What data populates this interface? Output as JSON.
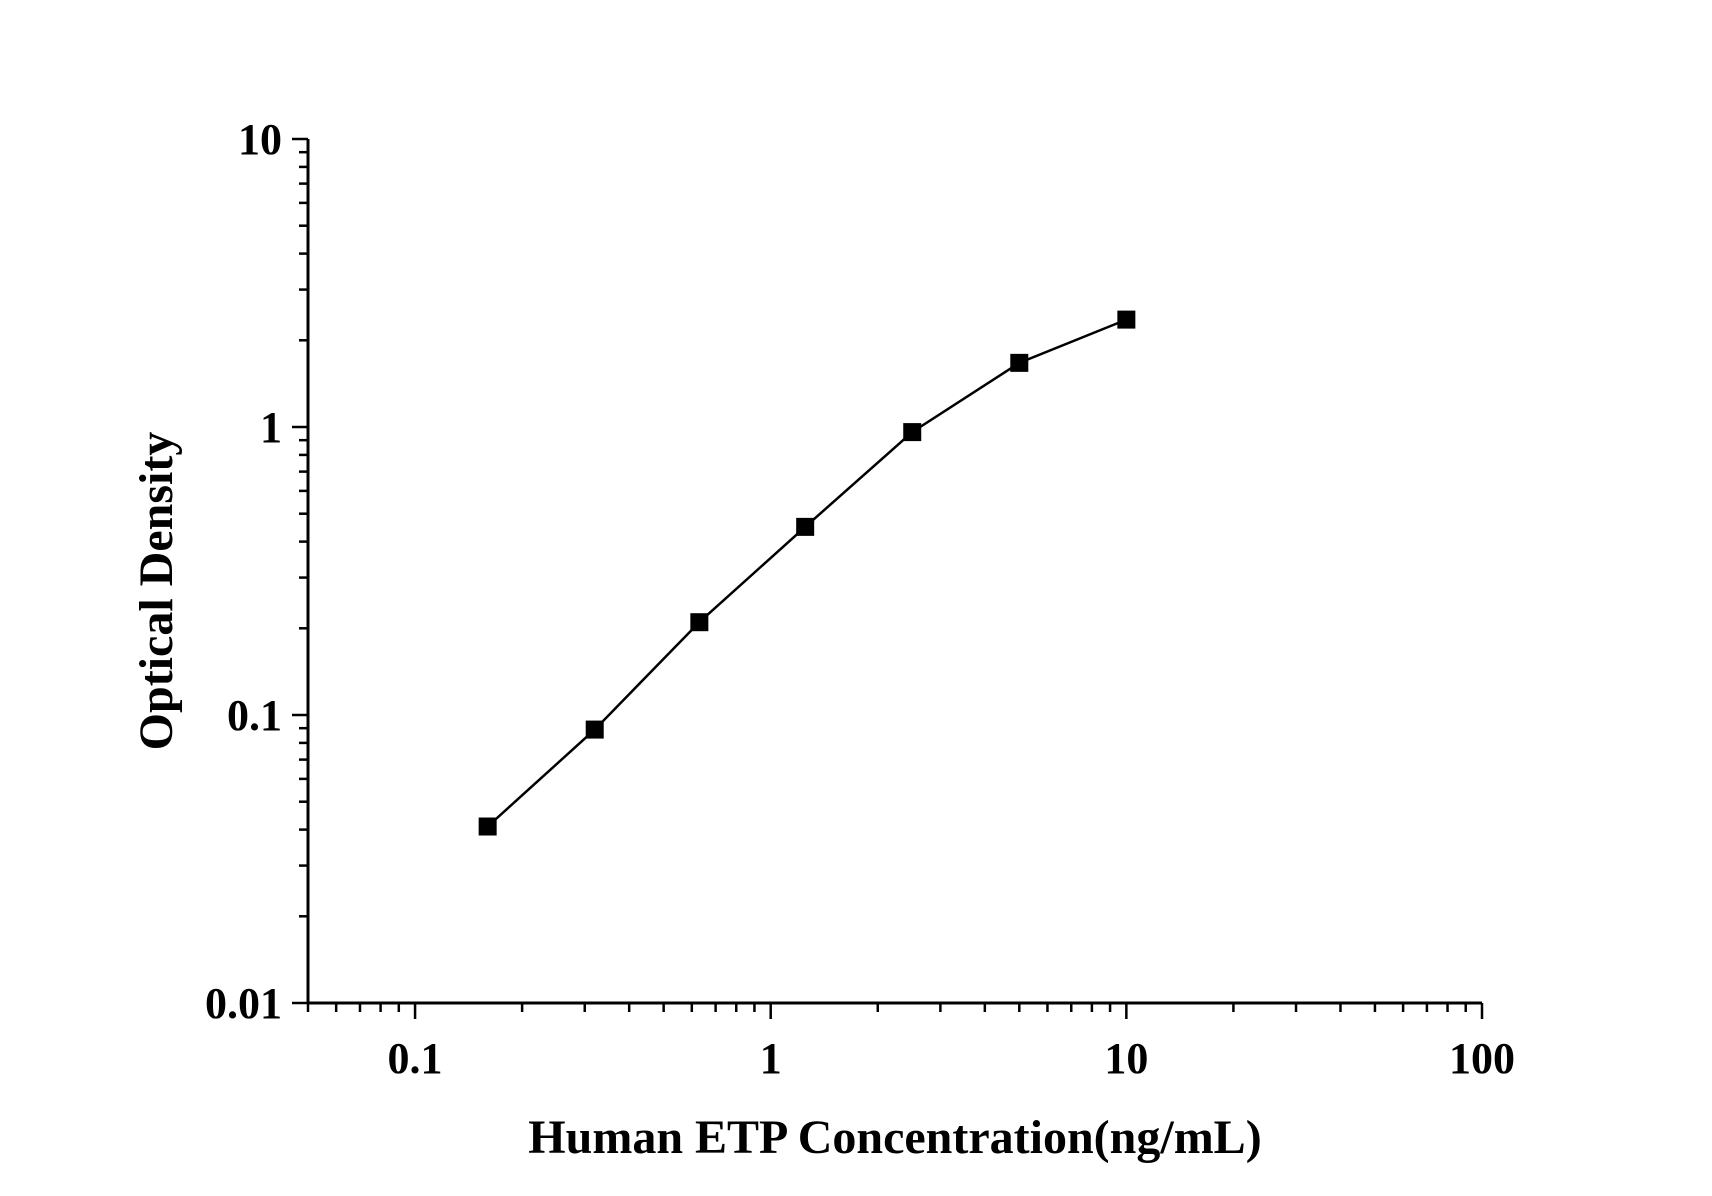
{
  "chart_data": {
    "type": "line",
    "title": "",
    "xlabel": "Human ETP Concentration(ng/mL)",
    "ylabel": "Optical Density",
    "x_scale": "log",
    "y_scale": "log",
    "xlim": [
      0.05,
      100
    ],
    "ylim": [
      0.01,
      10
    ],
    "x_ticks": [
      0.1,
      1,
      10,
      100
    ],
    "x_tick_labels": [
      "0.1",
      "1",
      "10",
      "100"
    ],
    "y_ticks": [
      0.01,
      0.1,
      1,
      10
    ],
    "y_tick_labels": [
      "0.01",
      "0.1",
      "1",
      "10"
    ],
    "grid": false,
    "legend": "none",
    "series": [
      {
        "marker": "square",
        "color": "#000000",
        "x": [
          0.16,
          0.32,
          0.63,
          1.25,
          2.5,
          5,
          10
        ],
        "y": [
          0.041,
          0.089,
          0.21,
          0.45,
          0.96,
          1.67,
          2.36
        ]
      }
    ]
  }
}
